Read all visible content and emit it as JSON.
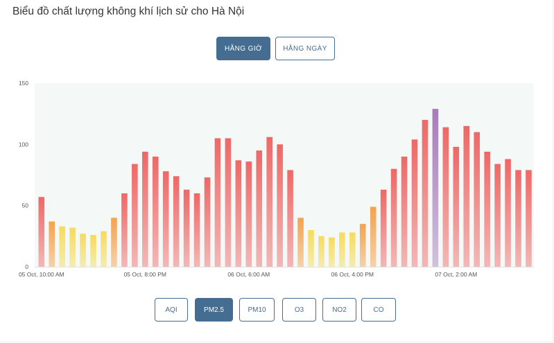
{
  "title": "Biểu đồ chất lượng không khí lịch sử cho Hà Nội",
  "toggle": {
    "hourly": "HẰNG GIỜ",
    "daily": "HẰNG NGÀY",
    "active": "hourly"
  },
  "pollutants": [
    {
      "label": "AQI",
      "active": false
    },
    {
      "label": "PM2.5",
      "active": true
    },
    {
      "label": "PM10",
      "active": false
    },
    {
      "label": "O3",
      "active": false
    },
    {
      "label": "NO2",
      "active": false
    },
    {
      "label": "CO",
      "active": false
    }
  ],
  "colors": {
    "accent": "#456c91",
    "plot_bg": "#f4f9f8",
    "good": "#f6db5d",
    "moderate": "#f4a24e",
    "unhealthy": "#ee6866",
    "very_unhealthy": "#a97abc",
    "bar_base": "#fbd0d1"
  },
  "chart_data": {
    "type": "bar",
    "title": "",
    "xlabel": "",
    "ylabel": "",
    "ylim": [
      0,
      150
    ],
    "yticks": [
      0,
      50,
      100,
      150
    ],
    "grid": false,
    "x_tick_labels": [
      "05 Oct, 10:00 AM",
      "05 Oct, 8:00 PM",
      "06 Oct, 6:00 AM",
      "06 Oct, 4:00 PM",
      "07 Oct, 2:00 AM"
    ],
    "x_tick_every": 10,
    "values": [
      57,
      37,
      33,
      32,
      27,
      26,
      29,
      40,
      60,
      84,
      94,
      90,
      78,
      74,
      63,
      60,
      73,
      105,
      105,
      87,
      86,
      95,
      106,
      100,
      79,
      40,
      30,
      25,
      24,
      28,
      28,
      35,
      49,
      63,
      80,
      90,
      104,
      120,
      129,
      114,
      98,
      115,
      110,
      94,
      84,
      88,
      79,
      79
    ]
  }
}
